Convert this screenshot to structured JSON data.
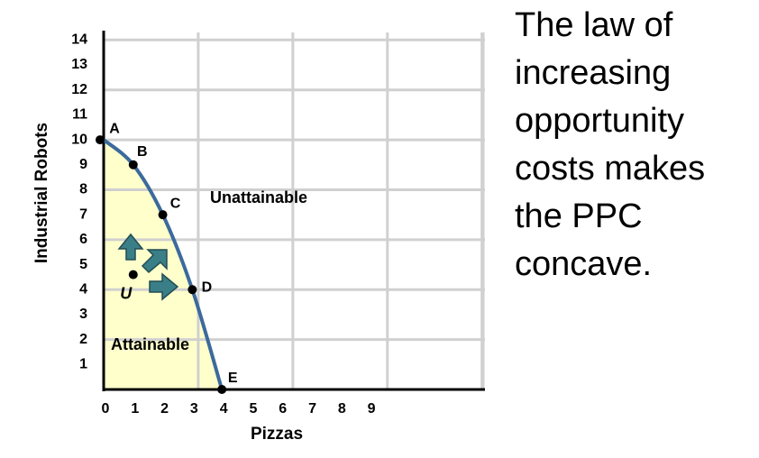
{
  "chart_data": {
    "type": "line",
    "x_label": "Pizzas",
    "y_label": "Industrial Robots",
    "x": [
      0,
      1,
      2,
      3,
      4
    ],
    "values": [
      10,
      9,
      7,
      4,
      0
    ],
    "point_labels": [
      "A",
      "B",
      "C",
      "D",
      "E"
    ],
    "color": "#3c6a9c",
    "area_color": "#ffffcc",
    "grid": true,
    "xlim": [
      0,
      12.9
    ],
    "ylim": [
      0,
      14.3
    ],
    "xticks": [
      0,
      1,
      2,
      3,
      4,
      5,
      6,
      7,
      8,
      9
    ],
    "yticks": [
      1,
      2,
      3,
      4,
      5,
      6,
      7,
      8,
      9,
      10,
      11,
      12,
      13,
      14
    ],
    "extra_point": {
      "x": 1,
      "y": 4.6,
      "label": "U"
    },
    "region_labels": [
      "Unattainable",
      "Attainable"
    ],
    "note_lines": [
      "The law of",
      "increasing",
      "opportunity",
      "costs makes",
      "the PPC",
      "concave."
    ]
  }
}
